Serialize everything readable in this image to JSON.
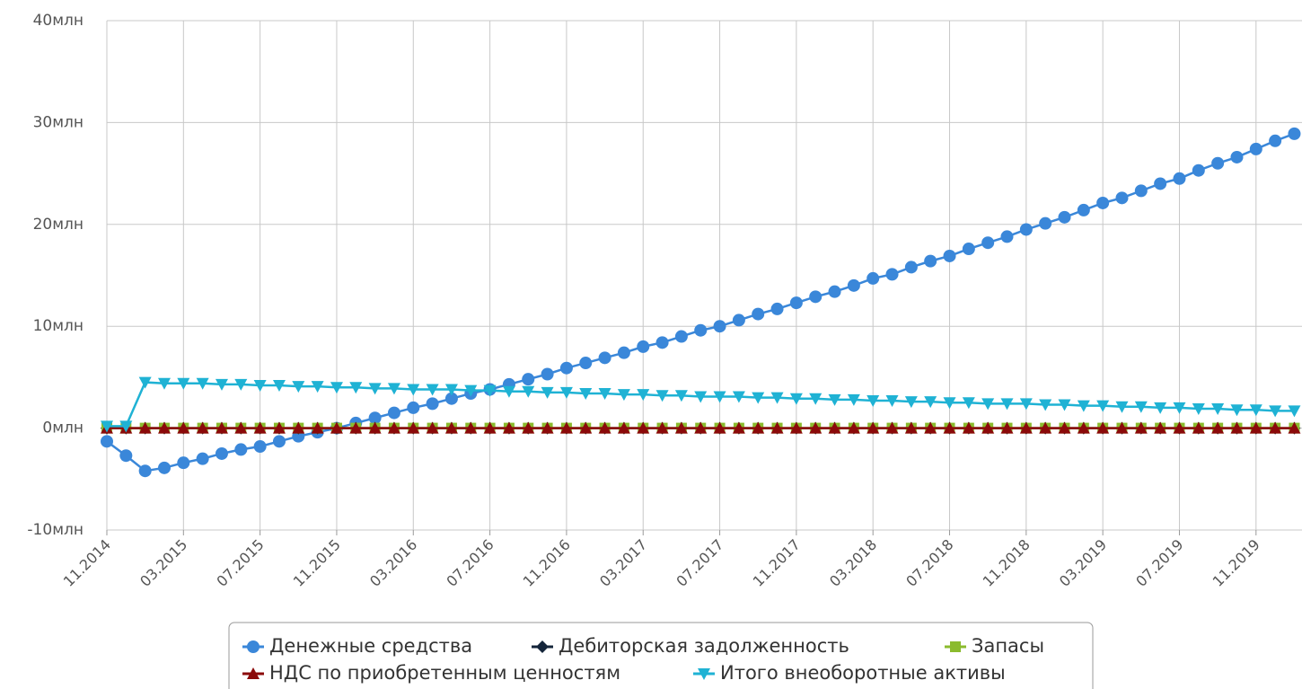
{
  "chart_data": {
    "type": "line",
    "categories": [
      "11.2014",
      null,
      null,
      null,
      "03.2015",
      null,
      null,
      null,
      "07.2015",
      null,
      null,
      null,
      "11.2015",
      null,
      null,
      null,
      "03.2016",
      null,
      null,
      null,
      "07.2016",
      null,
      null,
      null,
      "11.2016",
      null,
      null,
      null,
      "03.2017",
      null,
      null,
      null,
      "07.2017",
      null,
      null,
      null,
      "11.2017",
      null,
      null,
      null,
      "03.2018",
      null,
      null,
      null,
      "07.2018",
      null,
      null,
      null,
      "11.2018",
      null,
      null,
      null,
      "03.2019",
      null,
      null,
      null,
      "07.2019",
      null,
      null,
      null,
      "11.2019",
      null,
      null
    ],
    "series": [
      {
        "name": "Денежные средства",
        "color": "#3a87d9",
        "marker": "circle",
        "values": [
          -1.3,
          -2.7,
          -4.2,
          -3.9,
          -3.4,
          -3.0,
          -2.5,
          -2.1,
          -1.8,
          -1.3,
          -0.8,
          -0.4,
          0.0,
          0.5,
          1.0,
          1.5,
          2.0,
          2.4,
          2.9,
          3.4,
          3.8,
          4.3,
          4.8,
          5.3,
          5.9,
          6.4,
          6.9,
          7.4,
          8.0,
          8.4,
          9.0,
          9.6,
          10.0,
          10.6,
          11.2,
          11.7,
          12.3,
          12.9,
          13.4,
          14.0,
          14.7,
          15.1,
          15.8,
          16.4,
          16.9,
          17.6,
          18.2,
          18.8,
          19.5,
          20.1,
          20.7,
          21.4,
          22.1,
          22.6,
          23.3,
          24.0,
          24.5,
          25.3,
          26.0,
          26.6,
          27.4,
          28.2,
          28.9
        ]
      },
      {
        "name": "Дебиторская задолженность",
        "color": "#14253a",
        "marker": "diamond",
        "values": [
          0,
          0,
          0,
          0,
          0,
          0,
          0,
          0,
          0,
          0,
          0,
          0,
          0,
          0,
          0,
          0,
          0,
          0,
          0,
          0,
          0,
          0,
          0,
          0,
          0,
          0,
          0,
          0,
          0,
          0,
          0,
          0,
          0,
          0,
          0,
          0,
          0,
          0,
          0,
          0,
          0,
          0,
          0,
          0,
          0,
          0,
          0,
          0,
          0,
          0,
          0,
          0,
          0,
          0,
          0,
          0,
          0,
          0,
          0,
          0,
          0,
          0,
          0
        ]
      },
      {
        "name": "Запасы",
        "color": "#8bbb2e",
        "marker": "square",
        "values": [
          0,
          0,
          0,
          0,
          0,
          0,
          0,
          0,
          0,
          0,
          0,
          0,
          0,
          0,
          0,
          0,
          0,
          0,
          0,
          0,
          0,
          0,
          0,
          0,
          0,
          0,
          0,
          0,
          0,
          0,
          0,
          0,
          0,
          0,
          0,
          0,
          0,
          0,
          0,
          0,
          0,
          0,
          0,
          0,
          0,
          0,
          0,
          0,
          0,
          0,
          0,
          0,
          0,
          0,
          0,
          0,
          0,
          0,
          0,
          0,
          0,
          0,
          0
        ]
      },
      {
        "name": "НДС по приобретенным ценностям",
        "color": "#8b0a0a",
        "marker": "triangle",
        "values": [
          0,
          0,
          0,
          0,
          0,
          0,
          0,
          0,
          0,
          0,
          0,
          0,
          0,
          0,
          0,
          0,
          0,
          0,
          0,
          0,
          0,
          0,
          0,
          0,
          0,
          0,
          0,
          0,
          0,
          0,
          0,
          0,
          0,
          0,
          0,
          0,
          0,
          0,
          0,
          0,
          0,
          0,
          0,
          0,
          0,
          0,
          0,
          0,
          0,
          0,
          0,
          0,
          0,
          0,
          0,
          0,
          0,
          0,
          0,
          0,
          0,
          0,
          0
        ]
      },
      {
        "name": "Итого внеоборотные активы",
        "color": "#1fb2d4",
        "marker": "triangle-down",
        "values": [
          0.2,
          0.2,
          4.5,
          4.4,
          4.4,
          4.4,
          4.3,
          4.3,
          4.2,
          4.2,
          4.1,
          4.1,
          4.0,
          4.0,
          3.9,
          3.9,
          3.8,
          3.8,
          3.8,
          3.7,
          3.7,
          3.6,
          3.6,
          3.5,
          3.5,
          3.4,
          3.4,
          3.3,
          3.3,
          3.2,
          3.2,
          3.1,
          3.1,
          3.1,
          3.0,
          3.0,
          2.9,
          2.9,
          2.8,
          2.8,
          2.7,
          2.7,
          2.6,
          2.6,
          2.5,
          2.5,
          2.4,
          2.4,
          2.4,
          2.3,
          2.3,
          2.2,
          2.2,
          2.1,
          2.1,
          2.0,
          2.0,
          1.9,
          1.9,
          1.8,
          1.8,
          1.7,
          1.7
        ]
      }
    ],
    "ylim": [
      -10,
      40
    ],
    "yticks": [
      {
        "value": -10,
        "label": "-10млн"
      },
      {
        "value": 0,
        "label": "0млн"
      },
      {
        "value": 10,
        "label": "10млн"
      },
      {
        "value": 20,
        "label": "20млн"
      },
      {
        "value": 30,
        "label": "30млн"
      },
      {
        "value": 40,
        "label": "40млн"
      }
    ],
    "grid": true,
    "legend": "bottom"
  }
}
